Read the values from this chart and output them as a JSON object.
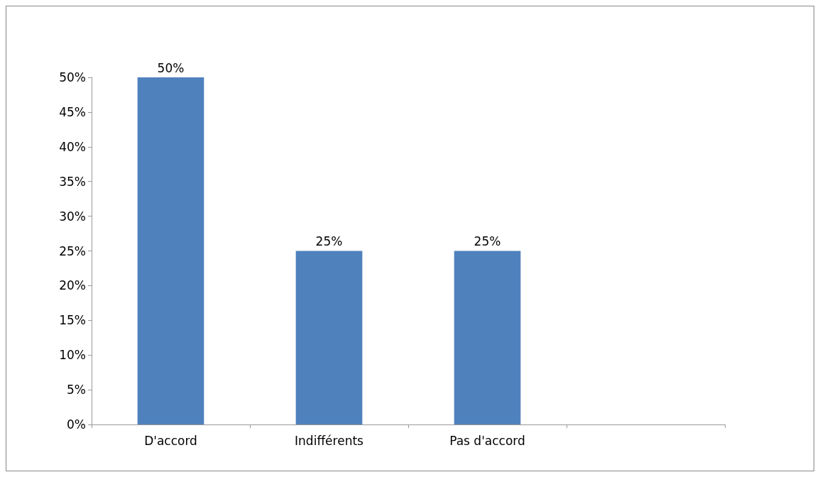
{
  "chart_data": {
    "type": "bar",
    "categories": [
      "D'accord",
      "Indifférents",
      "Pas d'accord",
      null
    ],
    "values": [
      50,
      25,
      25,
      null
    ],
    "value_labels": [
      "50%",
      "25%",
      "25%",
      null
    ],
    "color": "#4f81bd",
    "ylim": [
      0,
      50
    ],
    "yticks": [
      {
        "value": 0,
        "label": "0%"
      },
      {
        "value": 5,
        "label": "5%"
      },
      {
        "value": 10,
        "label": "10%"
      },
      {
        "value": 15,
        "label": "15%"
      },
      {
        "value": 20,
        "label": "20%"
      },
      {
        "value": 25,
        "label": "25%"
      },
      {
        "value": 30,
        "label": "30%"
      },
      {
        "value": 35,
        "label": "35%"
      },
      {
        "value": 40,
        "label": "40%"
      },
      {
        "value": 45,
        "label": "45%"
      },
      {
        "value": 50,
        "label": "50%"
      }
    ]
  }
}
